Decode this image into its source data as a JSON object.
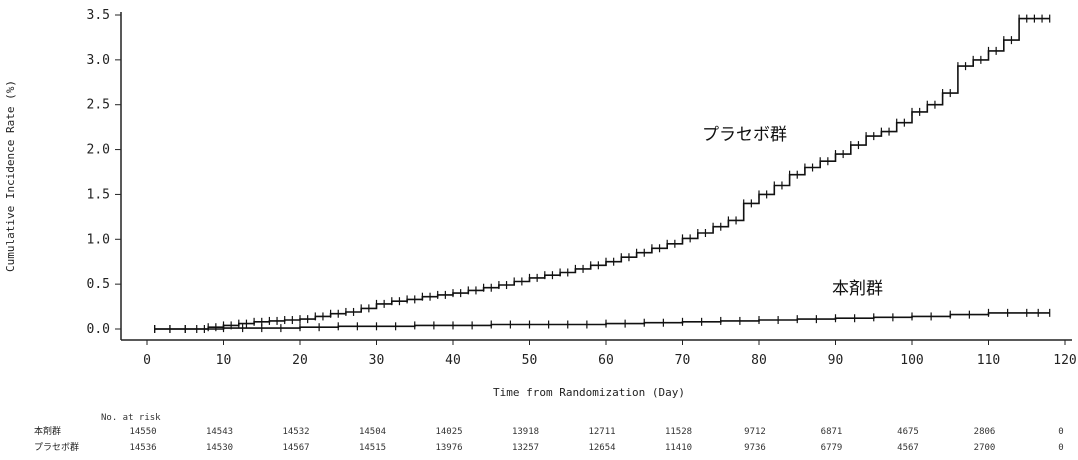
{
  "chart_data": {
    "type": "line",
    "step": true,
    "xlabel": "Time from Randomization (Day)",
    "ylabel": "Cumulative Incidence Rate (%)",
    "xlim": [
      -5,
      120
    ],
    "ylim": [
      0.0,
      3.5
    ],
    "x_ticks": [
      0,
      10,
      20,
      30,
      40,
      50,
      60,
      70,
      80,
      90,
      100,
      110,
      120
    ],
    "y_ticks": [
      "0.0",
      "0.5",
      "1.0",
      "1.5",
      "2.0",
      "2.5",
      "3.0",
      "3.5"
    ],
    "grid": false,
    "series": [
      {
        "name": "プラセボ群",
        "x": [
          1,
          5,
          8,
          10,
          12,
          14,
          16,
          18,
          20,
          22,
          24,
          26,
          28,
          30,
          32,
          34,
          36,
          38,
          40,
          42,
          44,
          46,
          48,
          50,
          52,
          54,
          56,
          58,
          60,
          62,
          64,
          66,
          68,
          70,
          72,
          74,
          76,
          78,
          80,
          82,
          84,
          86,
          88,
          90,
          92,
          94,
          96,
          98,
          100,
          102,
          104,
          106,
          108,
          110,
          112,
          114,
          116,
          118
        ],
        "y": [
          0.0,
          0.0,
          0.02,
          0.04,
          0.06,
          0.08,
          0.09,
          0.1,
          0.11,
          0.14,
          0.17,
          0.19,
          0.23,
          0.28,
          0.31,
          0.33,
          0.36,
          0.38,
          0.4,
          0.43,
          0.46,
          0.49,
          0.53,
          0.57,
          0.6,
          0.63,
          0.67,
          0.71,
          0.75,
          0.8,
          0.85,
          0.9,
          0.95,
          1.01,
          1.07,
          1.14,
          1.21,
          1.4,
          1.5,
          1.6,
          1.72,
          1.8,
          1.87,
          1.95,
          2.05,
          2.15,
          2.2,
          2.3,
          2.42,
          2.5,
          2.63,
          2.93,
          3.0,
          3.1,
          3.22,
          3.46,
          3.46,
          3.46
        ]
      },
      {
        "name": "本剤群",
        "x": [
          1,
          5,
          10,
          15,
          20,
          25,
          30,
          35,
          40,
          45,
          50,
          55,
          60,
          65,
          70,
          75,
          80,
          85,
          90,
          95,
          100,
          105,
          110,
          115,
          118
        ],
        "y": [
          0.0,
          0.0,
          0.01,
          0.01,
          0.02,
          0.03,
          0.03,
          0.04,
          0.04,
          0.05,
          0.05,
          0.05,
          0.06,
          0.07,
          0.08,
          0.09,
          0.1,
          0.11,
          0.12,
          0.13,
          0.14,
          0.16,
          0.18,
          0.18,
          0.18
        ]
      }
    ]
  },
  "risk_table": {
    "title": "No. at risk",
    "rows": [
      {
        "label": "本剤群",
        "values": [
          "14550",
          "14543",
          "14532",
          "14504",
          "14025",
          "13918",
          "12711",
          "11528",
          "9712",
          "6871",
          "4675",
          "2806",
          "0"
        ]
      },
      {
        "label": "プラセボ群",
        "values": [
          "14536",
          "14530",
          "14567",
          "14515",
          "13976",
          "13257",
          "12654",
          "11410",
          "9736",
          "6779",
          "4567",
          "2700",
          "0"
        ]
      }
    ]
  }
}
